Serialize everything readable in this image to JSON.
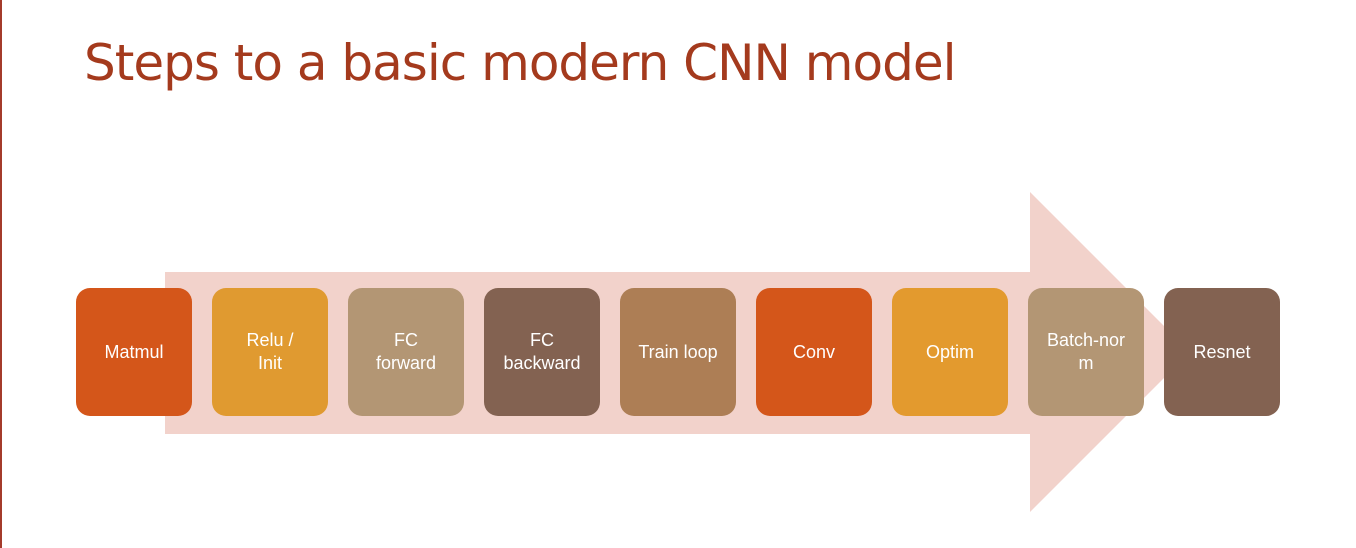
{
  "slide": {
    "title": "Steps to a basic modern CNN model"
  },
  "colors": {
    "title": "#a43a1d",
    "arrow": "#f2d2cb",
    "rule": "#a43b2b"
  },
  "steps": [
    {
      "label": "Matmul",
      "color": "#d4561a"
    },
    {
      "label": "Relu /\nInit",
      "color": "#e09a30"
    },
    {
      "label": "FC\nforward",
      "color": "#b39674"
    },
    {
      "label": "FC\nbackward",
      "color": "#836251"
    },
    {
      "label": "Train loop",
      "color": "#ad7e55"
    },
    {
      "label": "Conv",
      "color": "#d4561a"
    },
    {
      "label": "Optim",
      "color": "#e39a2e"
    },
    {
      "label": "Batch-nor\nm",
      "color": "#b39674"
    },
    {
      "label": "Resnet",
      "color": "#836251"
    }
  ]
}
